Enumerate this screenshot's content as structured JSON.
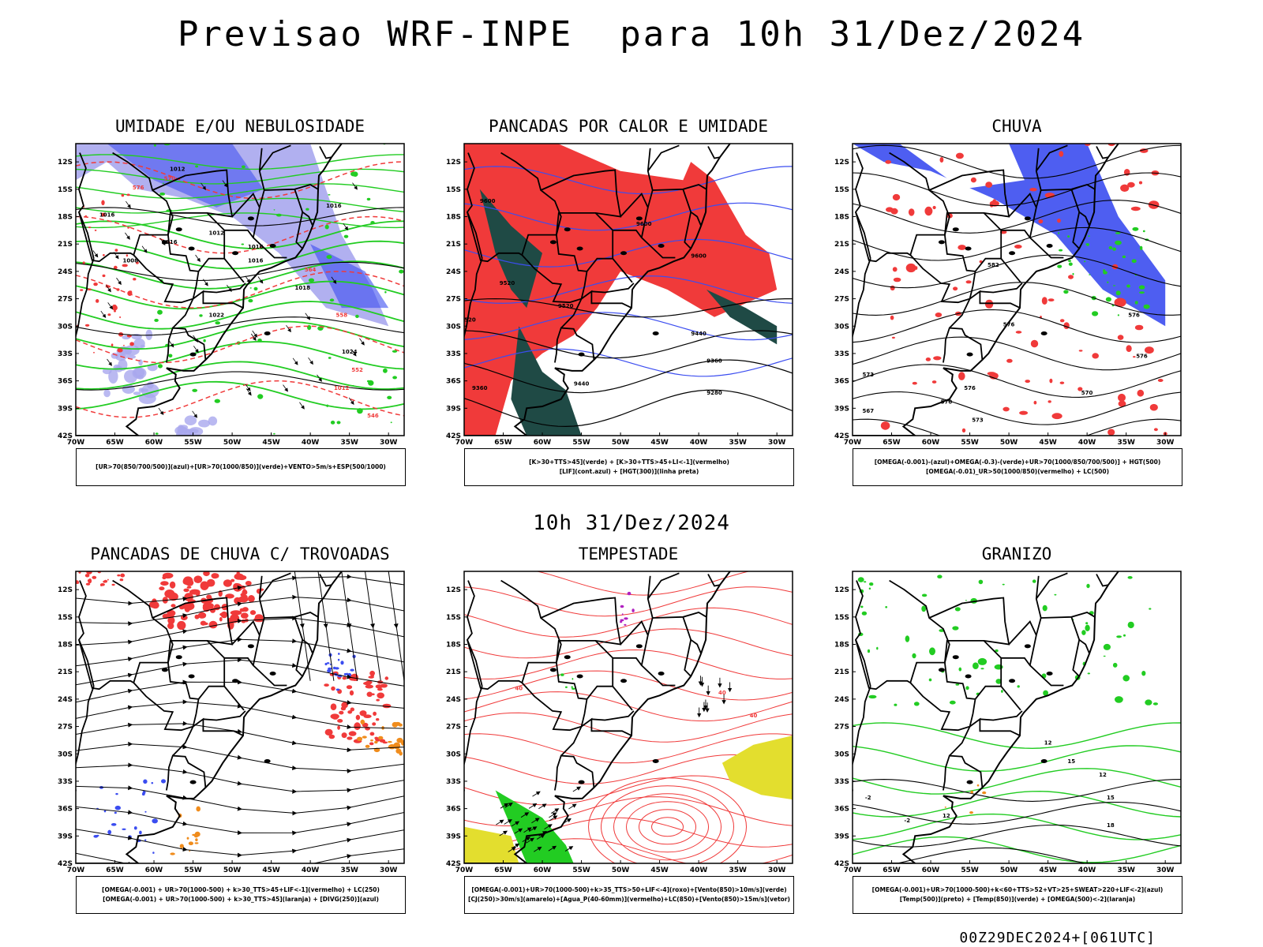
{
  "title": "Previsao WRF-INPE  para 10h 31/Dez/2024",
  "mid_date": "10h 31/Dez/2024",
  "footer": "00Z29DEC2024+[061UTC]",
  "axes": {
    "lat_labels": [
      "12S",
      "15S",
      "18S",
      "21S",
      "24S",
      "27S",
      "30S",
      "33S",
      "36S",
      "39S",
      "42S"
    ],
    "lon_labels": [
      "70W",
      "65W",
      "60W",
      "55W",
      "50W",
      "45W",
      "40W",
      "35W",
      "30W"
    ]
  },
  "colors": {
    "blue": "#3b4df0",
    "lightblue": "#a9a7ee",
    "green": "#22cc22",
    "red": "#f03a3a",
    "darkteal": "#1f4a45",
    "orange": "#f08c1c",
    "yellow": "#e3de2e",
    "purple": "#b020c0",
    "black": "#000000"
  },
  "panels": [
    {
      "id": "umidade",
      "title": "UMIDADE E/OU NEBULOSIDADE",
      "legend": [
        "[UR>70(850/700/500)](azul)+[UR>70(1000/850)](verde)+VENTO>5m/s+ESP(500/1000)"
      ],
      "contour_labels": [
        "1012",
        "1016",
        "1016",
        "1012",
        "1008",
        "1016",
        "1016",
        "1016",
        "1018",
        "1022",
        "1024",
        "1012",
        "576",
        "570",
        "564",
        "558",
        "552",
        "546"
      ]
    },
    {
      "id": "pancadas-calor",
      "title": "PANCADAS POR CALOR E UMIDADE",
      "legend": [
        "[K>30+TTS>45](verde) + [K>30+TTS>45+LI<-1](vermelho)",
        "[LIF](cont.azul) + [HGT(300)](linha preta)"
      ],
      "contour_labels": [
        "9600",
        "9600",
        "9600",
        "9520",
        "9520",
        "9520",
        "9440",
        "9360",
        "9360",
        "9280",
        "9440"
      ]
    },
    {
      "id": "chuva",
      "title": "CHUVA",
      "legend": [
        "[OMEGA(-0.001)-(azul)+OMEGA(-0.3)-(verde)+UR>70(1000/850/700/500)] + HGT(500)",
        "[OMEGA(-0.01)_UR>50(1000/850)(vermelho) + LC(500)"
      ],
      "contour_labels": [
        "582",
        "576",
        "576",
        "576",
        "570",
        "567",
        "573",
        "576",
        "573",
        "570"
      ]
    },
    {
      "id": "pancadas-trovoadas",
      "title": "PANCADAS DE CHUVA C/ TROVOADAS",
      "legend": [
        "[OMEGA(-0.001) + UR>70(1000-500) + k>30_TTS>45+LIF<-1](vermelho) + LC(250)",
        "[OMEGA(-0.001) + UR>70(1000-500) + k>30_TTS>45](laranja) + [DIVG(250)](azul)"
      ],
      "contour_labels": []
    },
    {
      "id": "tempestade",
      "title": "TEMPESTADE",
      "legend": [
        "[OMEGA(-0.001)+UR>70(1000-500)+k>35_TTS>50+LIF<-4](roxo)+[Vento(850)>10m/s](verde)",
        "[CJ(250)>30m/s](amarelo)+[Agua_P(40-60mm)](vermelho)+LC(850)+[Vento(850)>15m/s](vetor)"
      ],
      "contour_labels": [
        "40",
        "40",
        "40"
      ]
    },
    {
      "id": "granizo",
      "title": "GRANIZO",
      "legend": [
        "[OMEGA(-0.001)+UR>70(1000-500)+k<60+TTS>52+VT>25+SWEAT>220+LIF<-2](azul)",
        "[Temp(500)](preto) + [Temp(850)](verde) + [OMEGA(500)<-2](laranja)"
      ],
      "contour_labels": [
        "12",
        "12",
        "15",
        "18",
        "-2",
        "-2",
        "12",
        "15"
      ]
    }
  ]
}
